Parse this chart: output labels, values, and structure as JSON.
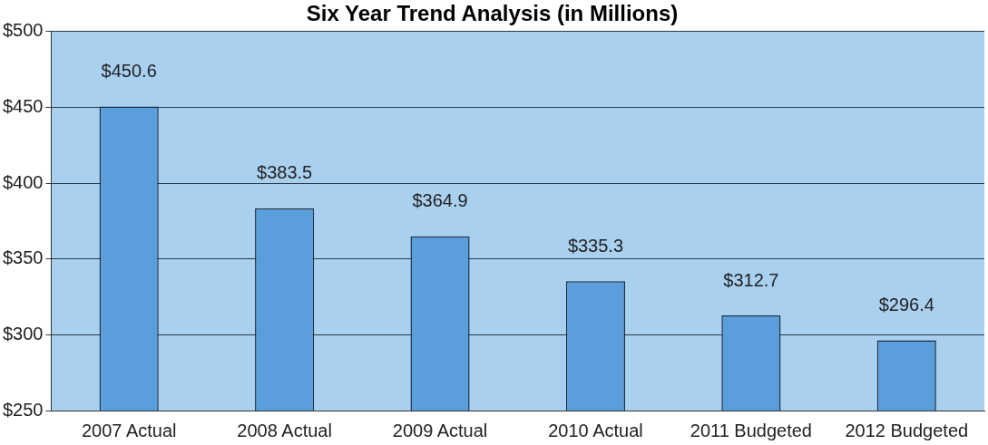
{
  "chart_data": {
    "type": "bar",
    "title": "Six Year Trend Analysis (in Millions)",
    "categories": [
      "2007 Actual",
      "2008 Actual",
      "2009 Actual",
      "2010 Actual",
      "2011 Budgeted",
      "2012 Budgeted"
    ],
    "values": [
      450.6,
      383.5,
      364.9,
      335.3,
      312.7,
      296.4
    ],
    "value_labels": [
      "$450.6",
      "$383.5",
      "$364.9",
      "$335.3",
      "$312.7",
      "$296.4"
    ],
    "color": "#5a9fdc",
    "ylim": [
      250,
      500
    ],
    "yticks": [
      {
        "value": 250,
        "label": "$250"
      },
      {
        "value": 300,
        "label": "$300"
      },
      {
        "value": 350,
        "label": "$350"
      },
      {
        "value": 400,
        "label": "$400"
      },
      {
        "value": 450,
        "label": "$450"
      },
      {
        "value": 500,
        "label": "$500"
      }
    ],
    "grid": "y"
  }
}
